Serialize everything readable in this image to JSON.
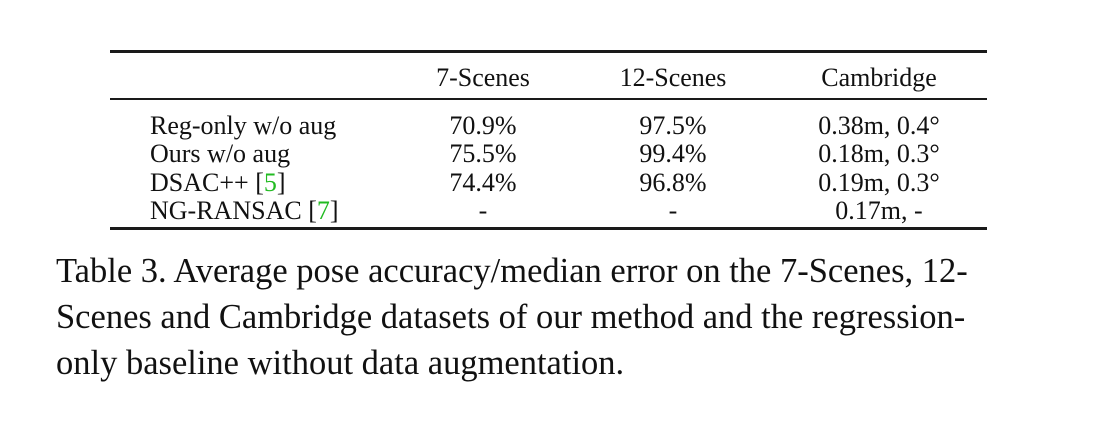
{
  "table": {
    "headers": [
      "",
      "7-Scenes",
      "12-Scenes",
      "Cambridge"
    ],
    "rows": [
      {
        "method": "Reg-only w/o aug",
        "cite": "",
        "seven_scenes": "70.9%",
        "twelve_scenes": "97.5%",
        "cambridge": "0.38m, 0.4°"
      },
      {
        "method": "Ours w/o aug",
        "cite": "",
        "seven_scenes": "75.5%",
        "twelve_scenes": "99.4%",
        "cambridge": "0.18m, 0.3°"
      },
      {
        "method": "DSAC++",
        "cite": "5",
        "seven_scenes": "74.4%",
        "twelve_scenes": "96.8%",
        "cambridge": "0.19m, 0.3°"
      },
      {
        "method": "NG-RANSAC",
        "cite": "7",
        "seven_scenes": "-",
        "twelve_scenes": "-",
        "cambridge": "0.17m, -"
      }
    ]
  },
  "caption": {
    "line1": "Table 3. Average pose accuracy/median error on the 7-Scenes, 12-",
    "line2": "Scenes and Cambridge datasets of our method and the regression-",
    "line3": "only baseline without data augmentation."
  }
}
